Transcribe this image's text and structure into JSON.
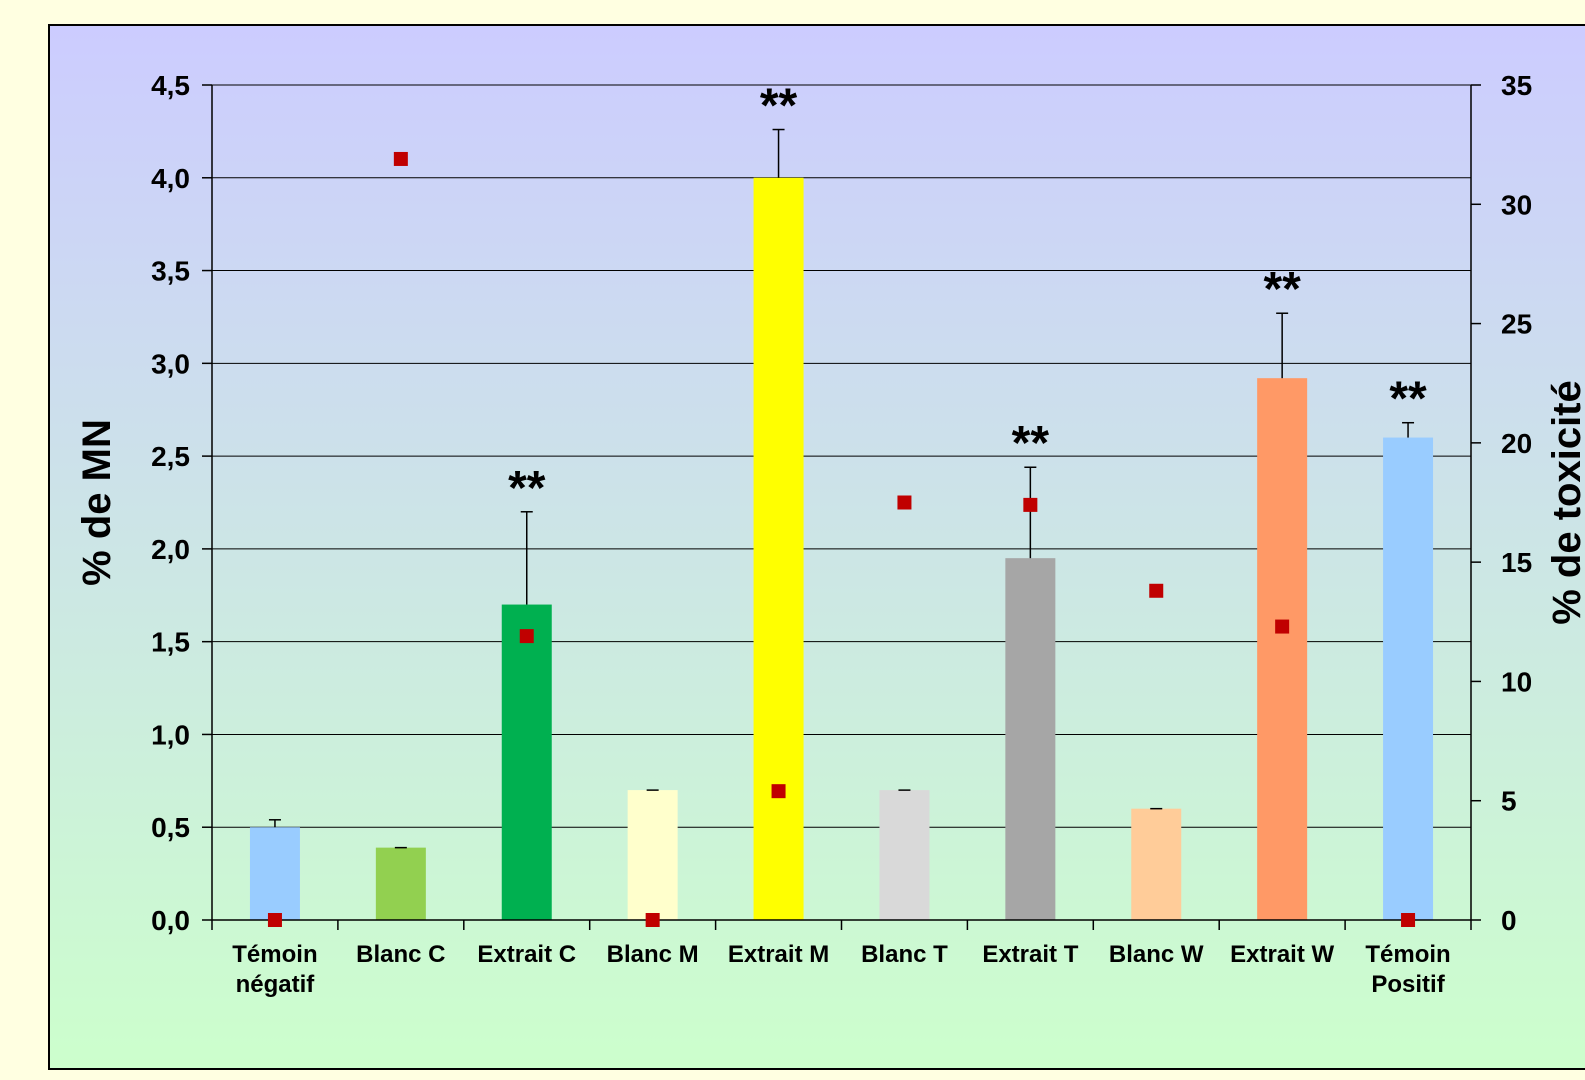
{
  "chart_data": {
    "type": "bar",
    "ylabel": "% de MN",
    "y2label": "% de toxicité",
    "ylim": [
      0,
      4.5
    ],
    "y2lim": [
      0,
      35
    ],
    "yticks": [
      "0,0",
      "0,5",
      "1,0",
      "1,5",
      "2,0",
      "2,5",
      "3,0",
      "3,5",
      "4,0",
      "4,5"
    ],
    "y2ticks": [
      "0",
      "5",
      "10",
      "15",
      "20",
      "25",
      "30",
      "35"
    ],
    "grid": true,
    "categories": [
      {
        "lines": [
          "Témoin",
          "négatif"
        ]
      },
      {
        "lines": [
          "Blanc C"
        ]
      },
      {
        "lines": [
          "Extrait C"
        ]
      },
      {
        "lines": [
          "Blanc M"
        ]
      },
      {
        "lines": [
          "Extrait M"
        ]
      },
      {
        "lines": [
          "Blanc T"
        ]
      },
      {
        "lines": [
          "Extrait T"
        ]
      },
      {
        "lines": [
          "Blanc W"
        ]
      },
      {
        "lines": [
          "Extrait W"
        ]
      },
      {
        "lines": [
          "Témoin",
          "Positif"
        ]
      }
    ],
    "bars": {
      "values": [
        0.5,
        0.39,
        1.7,
        0.7,
        4.0,
        0.7,
        1.95,
        0.6,
        2.92,
        2.6
      ],
      "errors": [
        0.04,
        0.0,
        0.5,
        0.0,
        0.26,
        0.0,
        0.49,
        0.0,
        0.35,
        0.08
      ],
      "colors": [
        "#99CCFF",
        "#92D050",
        "#00B050",
        "#FFFFCC",
        "#FFFF00",
        "#D9D9D9",
        "#A6A6A6",
        "#FFCC99",
        "#FF9966",
        "#99CCFF"
      ]
    },
    "markers": {
      "axis": "secondary",
      "color": "#C00000",
      "values": [
        0.0,
        31.9,
        11.9,
        0.0,
        5.4,
        17.5,
        17.4,
        13.8,
        12.3,
        0.0
      ]
    },
    "significance": [
      "",
      "",
      "**",
      "",
      "**",
      "",
      "**",
      "",
      "**",
      "**"
    ]
  },
  "colors": {
    "page_background": "#FFFFE1",
    "gradient_top": "#CCCCFF",
    "gradient_bottom": "#CCFFCC"
  }
}
